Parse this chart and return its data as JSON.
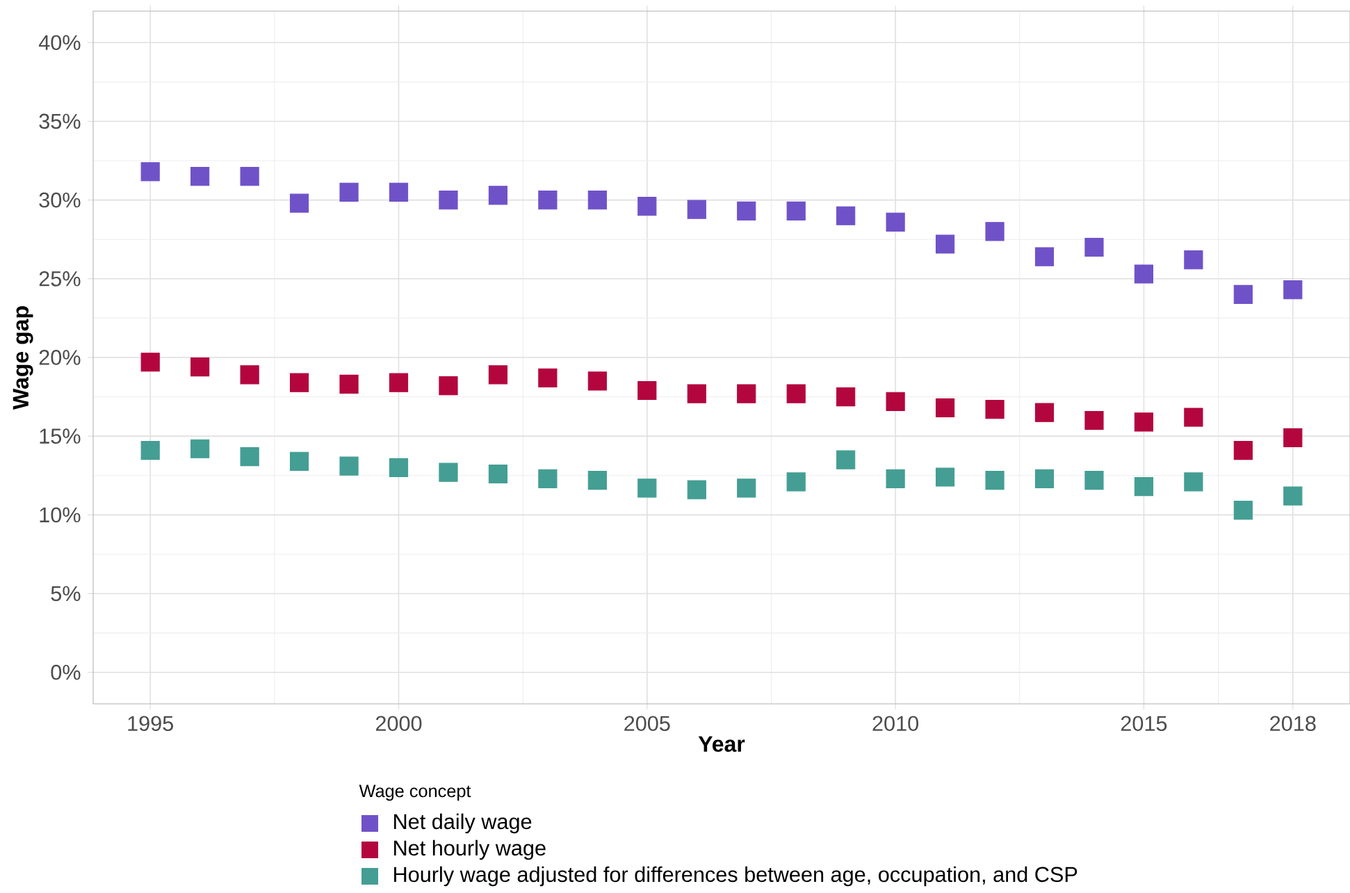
{
  "chart_data": {
    "type": "scatter",
    "xlabel": "Year",
    "ylabel": "Wage gap",
    "legend_title": "Wage concept",
    "x": [
      1995,
      1996,
      1997,
      1998,
      1999,
      2000,
      2001,
      2002,
      2003,
      2004,
      2005,
      2006,
      2007,
      2008,
      2009,
      2010,
      2011,
      2012,
      2013,
      2014,
      2015,
      2016,
      2017,
      2018
    ],
    "series": [
      {
        "name": "Net daily wage",
        "color": "#6f52c8",
        "values": [
          31.8,
          31.5,
          31.5,
          29.8,
          30.5,
          30.5,
          30.0,
          30.3,
          30.0,
          30.0,
          29.6,
          29.4,
          29.3,
          29.3,
          29.0,
          28.6,
          27.2,
          28.0,
          26.4,
          27.0,
          25.3,
          26.2,
          24.0,
          24.3
        ]
      },
      {
        "name": "Net hourly wage",
        "color": "#b3063f",
        "values": [
          19.7,
          19.4,
          18.9,
          18.4,
          18.3,
          18.4,
          18.2,
          18.9,
          18.7,
          18.5,
          17.9,
          17.7,
          17.7,
          17.7,
          17.5,
          17.2,
          16.8,
          16.7,
          16.5,
          16.0,
          15.9,
          16.2,
          14.1,
          14.9
        ]
      },
      {
        "name": "Hourly wage adjusted for differences between age, occupation, and CSP",
        "color": "#449e93",
        "values": [
          14.1,
          14.2,
          13.7,
          13.4,
          13.1,
          13.0,
          12.7,
          12.6,
          12.3,
          12.2,
          11.7,
          11.6,
          11.7,
          12.1,
          13.5,
          12.3,
          12.4,
          12.2,
          12.3,
          12.2,
          11.8,
          12.1,
          10.3,
          11.2
        ]
      }
    ],
    "xlim": [
      1993.85,
      2019.15
    ],
    "xticks": [
      1995,
      2000,
      2005,
      2010,
      2015,
      2018
    ],
    "ylim": [
      -2,
      42
    ],
    "yticks": [
      {
        "value": 0,
        "label": "0%"
      },
      {
        "value": 5,
        "label": "5%"
      },
      {
        "value": 10,
        "label": "10%"
      },
      {
        "value": 15,
        "label": "15%"
      },
      {
        "value": 20,
        "label": "20%"
      },
      {
        "value": 25,
        "label": "25%"
      },
      {
        "value": 30,
        "label": "30%"
      },
      {
        "value": 35,
        "label": "35%"
      },
      {
        "value": 40,
        "label": "40%"
      }
    ],
    "grid": true,
    "legend": "bottom",
    "marker": "square"
  }
}
